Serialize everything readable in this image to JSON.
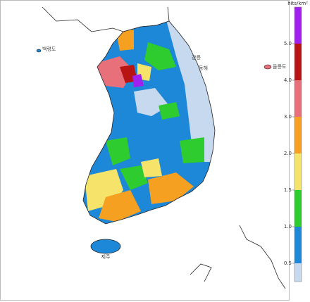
{
  "colorbar": {
    "label": "hits/km²",
    "ticks": [
      0.5,
      {
        "value": 1.0,
        "label": "1.0"
      },
      1.5,
      {
        "value": 2.0,
        "label": "2.0"
      },
      {
        "value": 3.0,
        "label": "3.0"
      },
      {
        "value": 4.0,
        "label": "4.0"
      },
      {
        "value": 5.0,
        "label": "5.0"
      }
    ],
    "colors": [
      "#c6d9ee",
      "#1e88d8",
      "#2ecc2e",
      "#f5e36a",
      "#f5a020",
      "#e8707a",
      "#b81414",
      "#a020f0"
    ]
  },
  "places": [
    "백령도",
    "강릉",
    "동해",
    "울릉도",
    "제주"
  ]
}
